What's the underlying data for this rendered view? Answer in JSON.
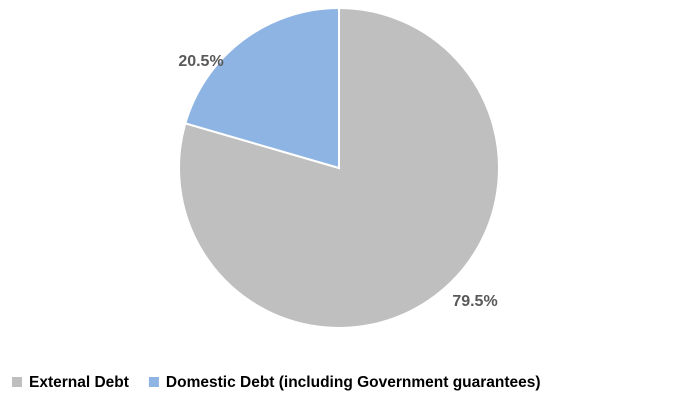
{
  "chart_data": {
    "type": "pie",
    "title": "",
    "slices": [
      {
        "label": "External Debt",
        "value": 79.5,
        "display": "79.5%",
        "color": "#bfbfbf"
      },
      {
        "label": "Domestic Debt (including Government guarantees)",
        "value": 20.5,
        "display": "20.5%",
        "color": "#8eb4e3"
      }
    ],
    "legend_position": "bottom",
    "start_angle_deg": 0,
    "direction": "clockwise"
  }
}
